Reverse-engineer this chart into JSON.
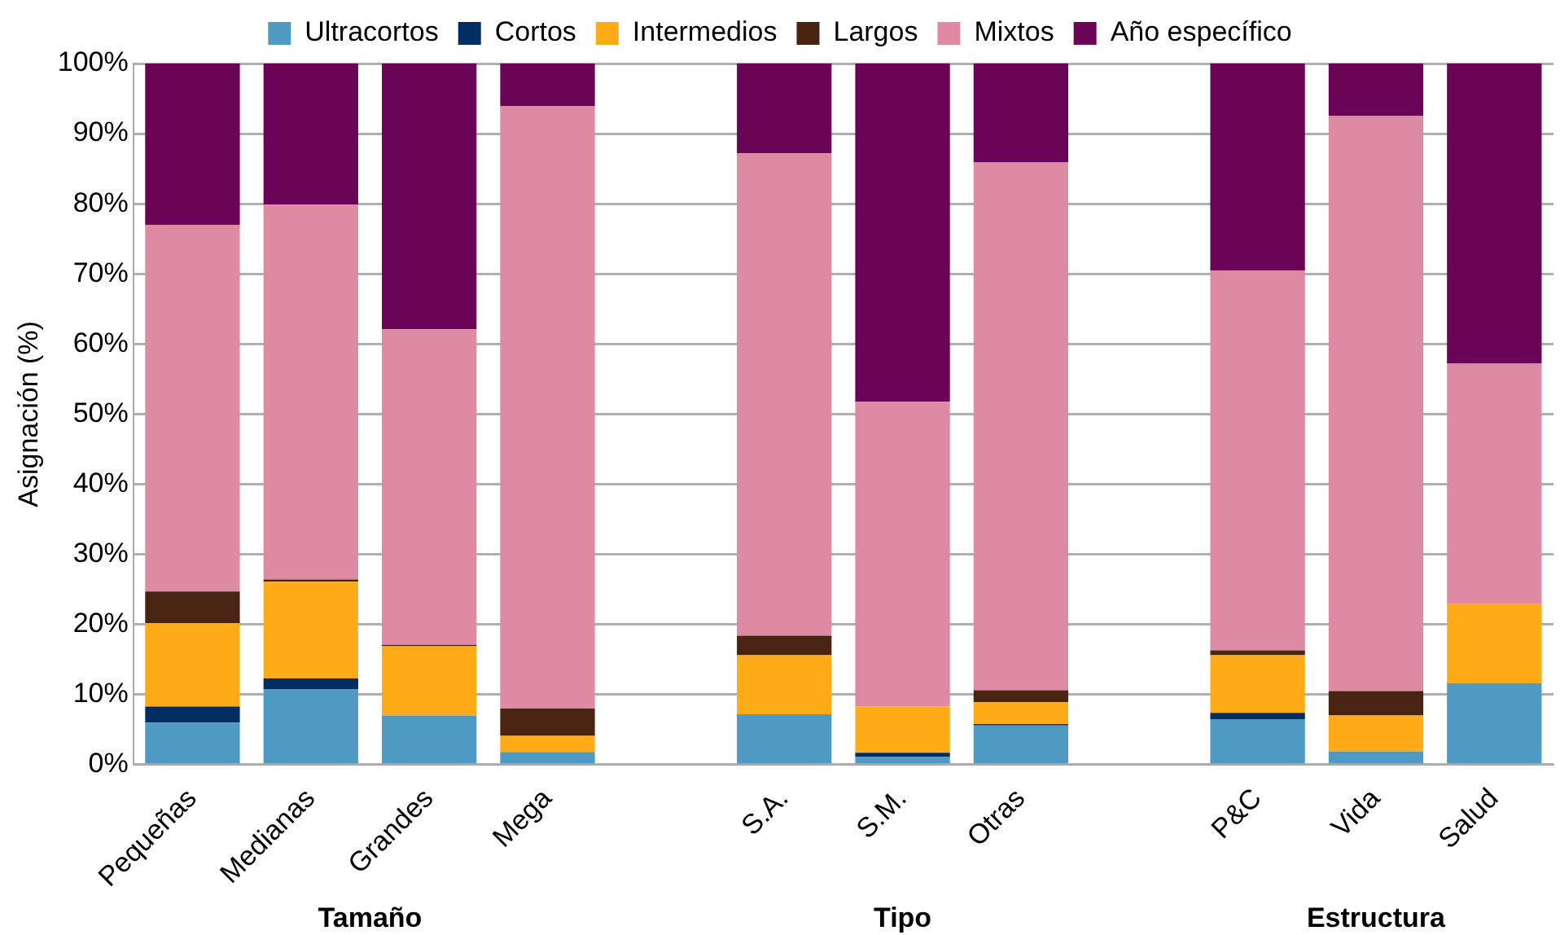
{
  "chart_data": {
    "type": "bar",
    "stacked": true,
    "ylabel": "Asignación (%)",
    "categories": [
      "Pequeñas",
      "Medianas",
      "Grandes",
      "Mega",
      null,
      "S.A.",
      "S.M.",
      "Otras",
      null,
      "P&C",
      "Vida",
      "Salud"
    ],
    "series": [
      {
        "name": "Ultracortos",
        "color": "#4f9ac3",
        "values": [
          6.0,
          10.8,
          7.0,
          1.8,
          null,
          7.2,
          1.1,
          5.6,
          null,
          6.5,
          1.9,
          11.6
        ]
      },
      {
        "name": "Cortos",
        "color": "#002d62",
        "values": [
          2.3,
          1.5,
          0,
          0,
          null,
          0,
          0.6,
          0.2,
          null,
          0.9,
          0,
          0
        ]
      },
      {
        "name": "Intermedios",
        "color": "#ffab18",
        "values": [
          11.9,
          13.8,
          9.9,
          2.3,
          null,
          8.4,
          6.6,
          3.1,
          null,
          8.2,
          5.1,
          11.3
        ]
      },
      {
        "name": "Largos",
        "color": "#4a2413",
        "values": [
          4.5,
          0.3,
          0.2,
          3.9,
          null,
          2.8,
          0,
          1.7,
          null,
          0.7,
          3.5,
          0
        ]
      },
      {
        "name": "Mixtos",
        "color": "#de8aa3",
        "values": [
          52.3,
          53.5,
          45.0,
          85.9,
          null,
          68.8,
          43.5,
          75.3,
          null,
          54.2,
          82.0,
          34.3
        ]
      },
      {
        "name": "Año específico",
        "color": "#6b0357",
        "values": [
          23.0,
          20.2,
          37.9,
          6.1,
          null,
          12.8,
          48.2,
          14.1,
          null,
          29.5,
          7.5,
          42.8
        ]
      }
    ],
    "ylim": [
      0,
      100
    ],
    "yticks": [
      {
        "value": 0,
        "label": "0%"
      },
      {
        "value": 10,
        "label": "10%"
      },
      {
        "value": 20,
        "label": "20%"
      },
      {
        "value": 30,
        "label": "30%"
      },
      {
        "value": 40,
        "label": "40%"
      },
      {
        "value": 50,
        "label": "50%"
      },
      {
        "value": 60,
        "label": "60%"
      },
      {
        "value": 70,
        "label": "70%"
      },
      {
        "value": 80,
        "label": "80%"
      },
      {
        "value": 90,
        "label": "90%"
      },
      {
        "value": 100,
        "label": "100%"
      }
    ],
    "grid": "y",
    "legend": "top",
    "annotations": [
      "Tamaño",
      "Tipo",
      "Estructura"
    ]
  }
}
